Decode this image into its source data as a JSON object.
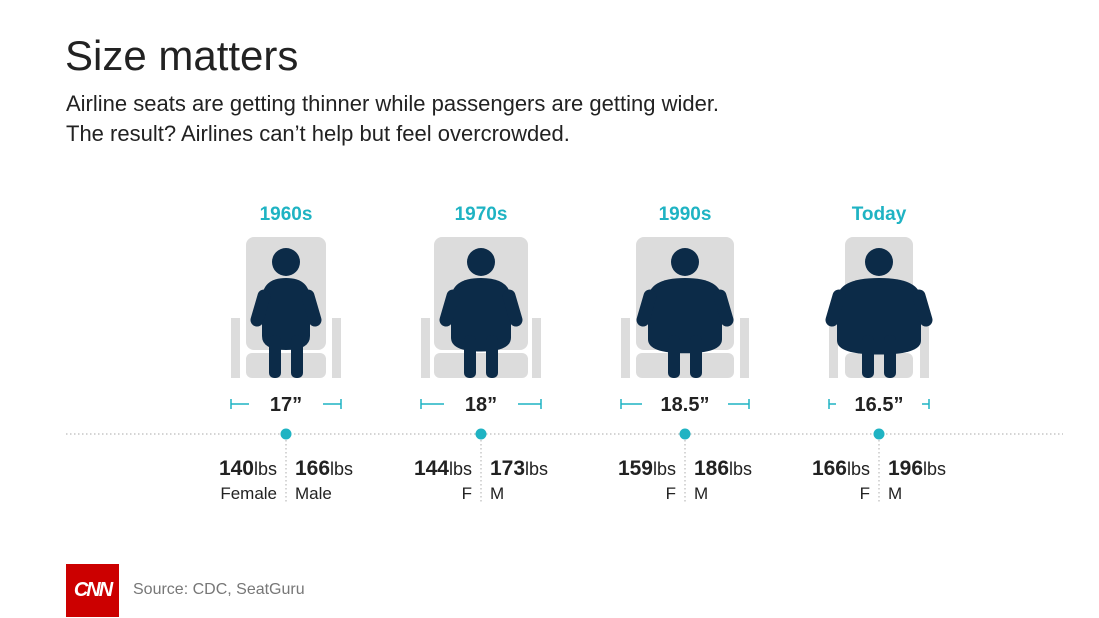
{
  "header": {
    "title": "Size matters",
    "subtitle_lines": [
      "Airline seats are getting thinner while passengers are getting wider.",
      "The result? Airlines can’t help but feel overcrowded."
    ]
  },
  "footer": {
    "logo_text": "CNN",
    "source": "Source: CDC, SeatGuru"
  },
  "colors": {
    "accent": "#1fb3c3",
    "figure": "#0c2b48",
    "seat": "#dcdcdc",
    "logo": "#cc0000"
  },
  "chart_data": {
    "type": "infographic",
    "categories": [
      "1960s",
      "1970s",
      "1990s",
      "Today"
    ],
    "seat_width_labels": [
      "17”",
      "18”",
      "18.5”",
      "16.5”"
    ],
    "seat_width_in": [
      17,
      18,
      18.5,
      16.5
    ],
    "female_lbs": [
      140,
      144,
      159,
      166
    ],
    "male_lbs": [
      166,
      173,
      186,
      196
    ],
    "unit": "lbs",
    "female_labels": [
      "Female",
      "F",
      "F",
      "F"
    ],
    "male_labels": [
      "Male",
      "M",
      "M",
      "M"
    ]
  }
}
